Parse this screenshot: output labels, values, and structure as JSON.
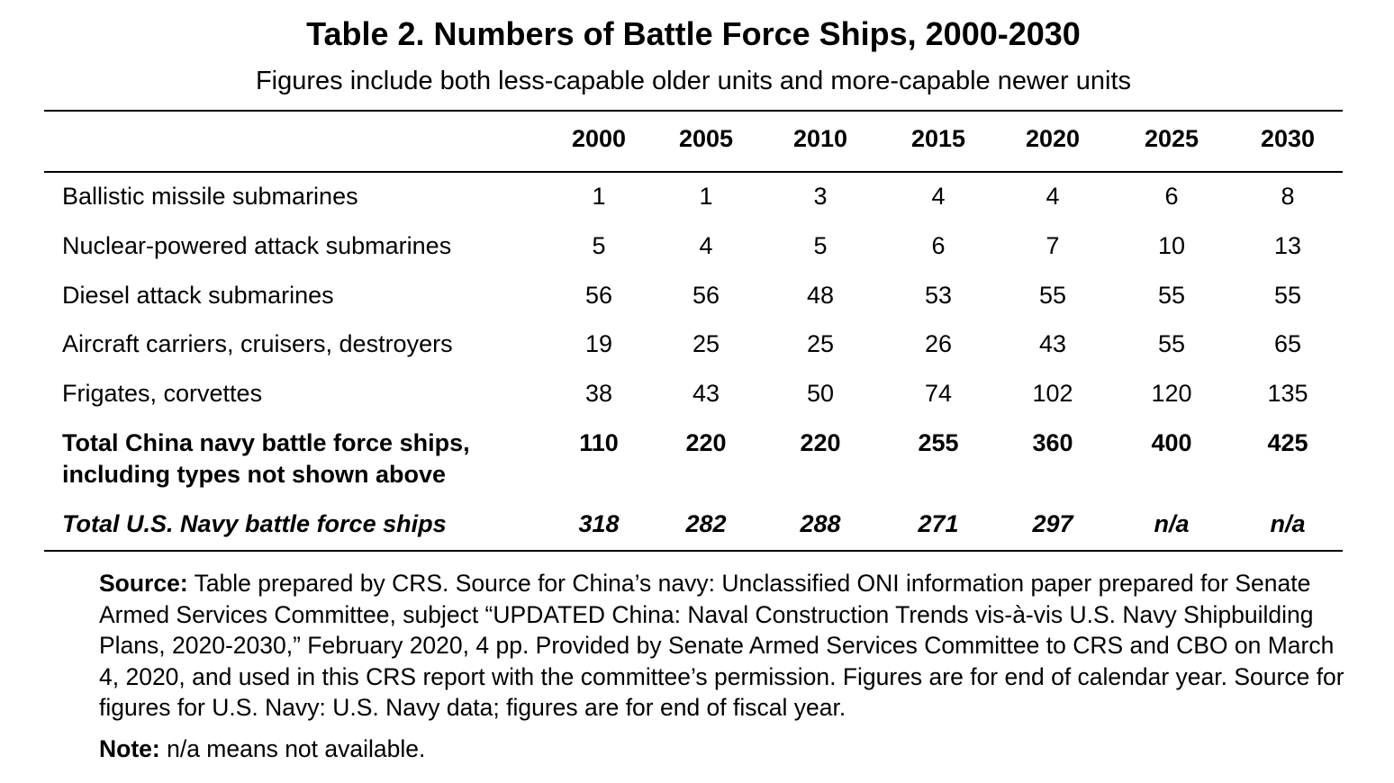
{
  "title": "Table 2. Numbers of Battle Force Ships, 2000-2030",
  "subtitle": "Figures include both less-capable older units and more-capable newer units",
  "table": {
    "columns": [
      "2000",
      "2005",
      "2010",
      "2015",
      "2020",
      "2025",
      "2030"
    ],
    "rows": [
      {
        "label": "Ballistic missile submarines",
        "values": [
          "1",
          "1",
          "3",
          "4",
          "4",
          "6",
          "8"
        ]
      },
      {
        "label": "Nuclear-powered attack submarines",
        "values": [
          "5",
          "4",
          "5",
          "6",
          "7",
          "10",
          "13"
        ]
      },
      {
        "label": "Diesel attack submarines",
        "values": [
          "56",
          "56",
          "48",
          "53",
          "55",
          "55",
          "55"
        ]
      },
      {
        "label": "Aircraft carriers, cruisers, destroyers",
        "values": [
          "19",
          "25",
          "25",
          "26",
          "43",
          "55",
          "65"
        ]
      },
      {
        "label": "Frigates, corvettes",
        "values": [
          "38",
          "43",
          "50",
          "74",
          "102",
          "120",
          "135"
        ]
      },
      {
        "label": "Total China navy battle force ships, including types not shown above",
        "label_line1": "Total China navy battle force ships,",
        "label_line2": "including types not shown above",
        "values": [
          "110",
          "220",
          "220",
          "255",
          "360",
          "400",
          "425"
        ]
      },
      {
        "label": "Total U.S. Navy battle force ships",
        "values": [
          "318",
          "282",
          "288",
          "271",
          "297",
          "n/a",
          "n/a"
        ]
      }
    ]
  },
  "source": {
    "label": "Source:",
    "text": "Table prepared by CRS. Source for China’s navy: Unclassified ONI information paper prepared for Senate Armed Services Committee, subject “UPDATED China: Naval Construction Trends vis-à-vis U.S. Navy Shipbuilding Plans, 2020-2030,” February 2020, 4 pp. Provided by Senate Armed Services Committee to CRS and CBO on March 4, 2020, and used in this CRS report with the committee’s permission. Figures are for end of calendar year. Source for figures for U.S. Navy: U.S. Navy data; figures are for end of fiscal year."
  },
  "note": {
    "label": "Note:",
    "text": "n/a means not available."
  }
}
